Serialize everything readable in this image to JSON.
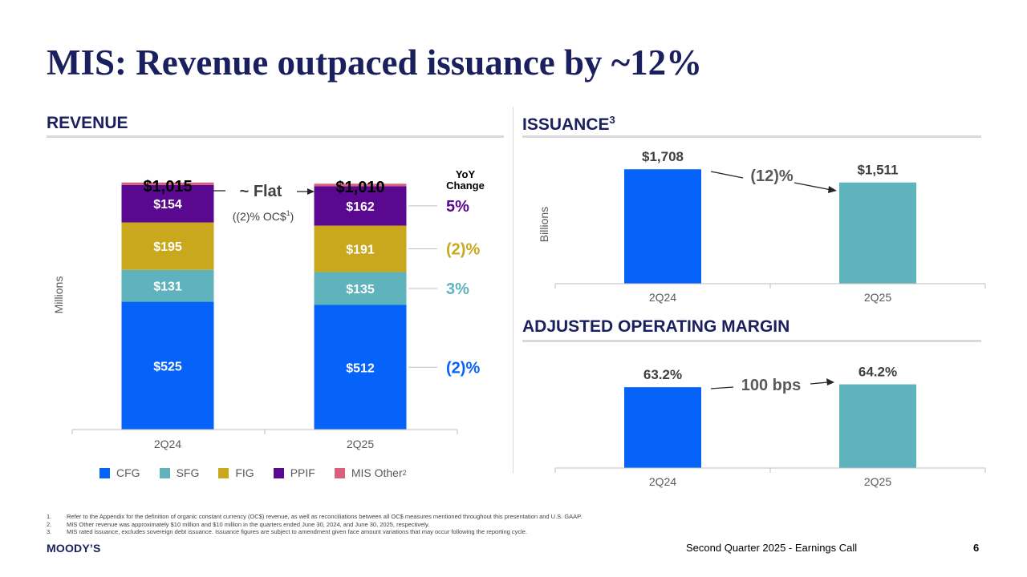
{
  "title": "MIS: Revenue outpaced issuance by ~12%",
  "colors": {
    "navy": "#1a1f5e",
    "CFG": "#0563fa",
    "SFG": "#5eb3bc",
    "FIG": "#c9a81e",
    "PPIF": "#5a0890",
    "MIS_Other": "#d9607a",
    "issuance_2Q24": "#0563fa",
    "issuance_2Q25": "#5eb3bc"
  },
  "revenue": {
    "heading": "REVENUE",
    "ylabel": "Millions",
    "yoy_header_1": "YoY",
    "yoy_header_2": "Change",
    "flat_label": "~ Flat",
    "oc_label_prefix": "((2)% OC$",
    "oc_label_sup": "1",
    "oc_label_suffix": ")"
  },
  "issuance": {
    "heading": "ISSUANCE",
    "heading_sup": "3"
  },
  "margin": {
    "heading": "ADJUSTED OPERATING MARGIN"
  },
  "legend": [
    {
      "label": "CFG",
      "color": "#0563fa",
      "sup": ""
    },
    {
      "label": "SFG",
      "color": "#5eb3bc",
      "sup": ""
    },
    {
      "label": "FIG",
      "color": "#c9a81e",
      "sup": ""
    },
    {
      "label": "PPIF",
      "color": "#5a0890",
      "sup": ""
    },
    {
      "label": "MIS Other",
      "color": "#d9607a",
      "sup": "2"
    }
  ],
  "chart_data": [
    {
      "type": "bar",
      "stacked": true,
      "title": "REVENUE",
      "ylabel": "Millions",
      "categories": [
        "2Q24",
        "2Q25"
      ],
      "totals": [
        "$1,015",
        "$1,010"
      ],
      "series": [
        {
          "name": "CFG",
          "values": [
            525,
            512
          ],
          "labels": [
            "$525",
            "$512"
          ],
          "yoy": "(2)%",
          "yoy_color": "#0563fa"
        },
        {
          "name": "SFG",
          "values": [
            131,
            135
          ],
          "labels": [
            "$131",
            "$135"
          ],
          "yoy": "3%",
          "yoy_color": "#5eb3bc"
        },
        {
          "name": "FIG",
          "values": [
            195,
            191
          ],
          "labels": [
            "$195",
            "$191"
          ],
          "yoy": "(2)%",
          "yoy_color": "#c9a81e"
        },
        {
          "name": "PPIF",
          "values": [
            154,
            162
          ],
          "labels": [
            "$154",
            "$162"
          ],
          "yoy": "5%",
          "yoy_color": "#5a0890"
        },
        {
          "name": "MIS Other",
          "values": [
            10,
            10
          ],
          "labels": [
            "",
            ""
          ],
          "yoy": "",
          "yoy_color": "#d9607a"
        }
      ],
      "ylim": [
        0,
        1100
      ]
    },
    {
      "type": "bar",
      "title": "ISSUANCE",
      "ylabel": "Billions",
      "categories": [
        "2Q24",
        "2Q25"
      ],
      "values": [
        1708,
        1511
      ],
      "labels": [
        "$1,708",
        "$1,511"
      ],
      "change": "(12)%",
      "ylim": [
        0,
        1950
      ]
    },
    {
      "type": "bar",
      "title": "ADJUSTED OPERATING MARGIN",
      "ylabel": "",
      "categories": [
        "2Q24",
        "2Q25"
      ],
      "values": [
        63.2,
        64.2
      ],
      "labels": [
        "63.2%",
        "64.2%"
      ],
      "change": "100 bps",
      "ylim": [
        35,
        68
      ]
    }
  ],
  "footnotes": [
    {
      "num": "1.",
      "text": "Refer to the Appendix for the definition of organic constant currency (OC$) revenue, as well as reconciliations between all OC$ measures mentioned throughout this presentation and U.S. GAAP."
    },
    {
      "num": "2.",
      "text": "MIS Other revenue was approximately $10 million and $10 million in the quarters ended June 30, 2024, and June 30, 2025, respectively."
    },
    {
      "num": "3.",
      "text": "MIS rated issuance, excludes sovereign debt issuance. Issuance figures are subject to amendment given face amount variations that may occur following the reporting cycle."
    }
  ],
  "footer": {
    "logo": "MOODY’S",
    "text": "Second Quarter 2025 - Earnings Call",
    "page": "6"
  }
}
